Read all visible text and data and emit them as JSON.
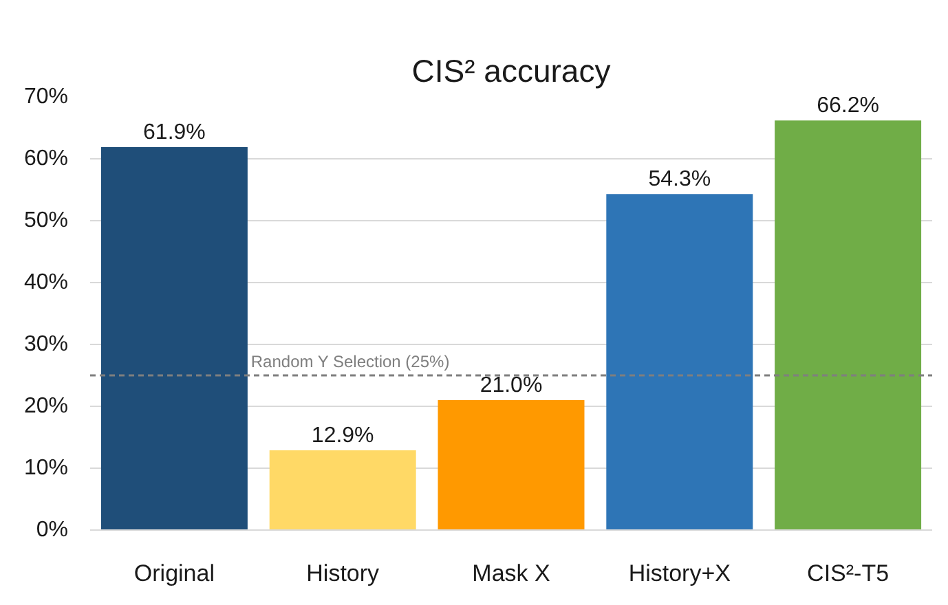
{
  "chart_data": {
    "type": "bar",
    "title": "CIS² accuracy",
    "categories": [
      "Original",
      "History",
      "Mask X",
      "History+X",
      "CIS²-T5"
    ],
    "values": [
      61.9,
      12.9,
      21.0,
      54.3,
      66.2
    ],
    "colors": [
      "#1f4e79",
      "#ffd966",
      "#ff9900",
      "#2e75b6",
      "#70ad47"
    ],
    "value_labels": [
      "61.9%",
      "12.9%",
      "21.0%",
      "54.3%",
      "66.2%"
    ],
    "ylim": [
      0,
      70
    ],
    "yticks": [
      {
        "value": 0,
        "label": "0%"
      },
      {
        "value": 10,
        "label": "10%"
      },
      {
        "value": 20,
        "label": "20%"
      },
      {
        "value": 30,
        "label": "30%"
      },
      {
        "value": 40,
        "label": "40%"
      },
      {
        "value": 50,
        "label": "50%"
      },
      {
        "value": 60,
        "label": "60%"
      },
      {
        "value": 70,
        "label": "70%"
      }
    ],
    "grid": "y",
    "ref_lines": [
      {
        "axis": "y",
        "value": 25,
        "label": "Random Y Selection (25%)",
        "color": "#7f7f7f",
        "line_style": "dashed"
      }
    ]
  }
}
